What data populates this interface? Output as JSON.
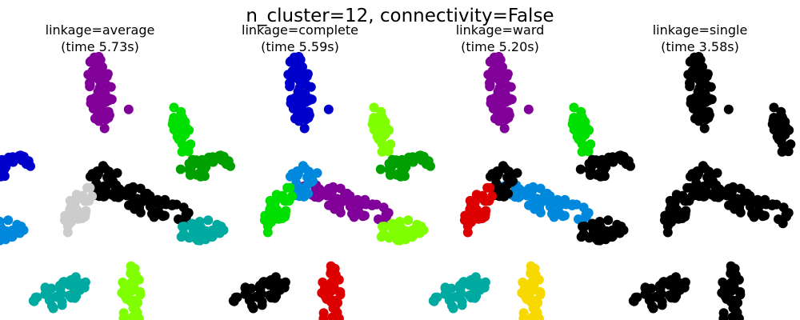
{
  "figure": {
    "suptitle": "n_cluster=12, connectivity=False"
  },
  "panels": [
    {
      "title": "linkage=average",
      "time_label": "(time 5.73s)"
    },
    {
      "title": "linkage=complete",
      "time_label": "(time 5.59s)"
    },
    {
      "title": "linkage=ward",
      "time_label": "(time 5.20s)"
    },
    {
      "title": "linkage=single",
      "time_label": "(time 3.58s)"
    }
  ],
  "chart_data": {
    "type": "scatter",
    "title": "n_cluster=12, connectivity=False",
    "subplots": 4,
    "axes_visible": false,
    "grid": false,
    "palette": {
      "purple": "#800099",
      "blue": "#0000cc",
      "green": "#00a000",
      "lime": "#00e000",
      "yellowgreen": "#80ff00",
      "teal": "#00aaa0",
      "skyblue": "#0088dd",
      "gray": "#cccccc",
      "black": "#000000",
      "red": "#dd0000",
      "orange": "#ff6600",
      "yellow": "#f7d900"
    },
    "shapes": {
      "top_arm": {
        "cx": 0.0,
        "cy": 1.05,
        "rx": 0.14,
        "ry": 0.42,
        "rot": 5,
        "n": 70
      },
      "right_up": {
        "cx": 0.9,
        "cy": 0.62,
        "rx": 0.1,
        "ry": 0.28,
        "rot": 12,
        "n": 35
      },
      "left_up": {
        "cx": -1.05,
        "cy": 0.22,
        "rx": 0.3,
        "ry": 0.12,
        "rot": 10,
        "n": 35
      },
      "left_mid": {
        "cx": -1.15,
        "cy": -0.5,
        "rx": 0.3,
        "ry": 0.12,
        "rot": 3,
        "n": 35
      },
      "down_left": {
        "cx": -0.45,
        "cy": -1.2,
        "rx": 0.32,
        "ry": 0.14,
        "rot": 25,
        "n": 40
      },
      "down_right": {
        "cx": 0.35,
        "cy": -1.25,
        "rx": 0.12,
        "ry": 0.36,
        "rot": 0,
        "n": 40
      },
      "right_arm": {
        "cx": 0.55,
        "cy": -0.2,
        "rx": 0.55,
        "ry": 0.13,
        "rot": -20,
        "n": 60
      },
      "center": {
        "cx": 0.05,
        "cy": 0.05,
        "rx": 0.18,
        "ry": 0.18,
        "rot": 0,
        "n": 25
      },
      "center_left": {
        "cx": -0.25,
        "cy": -0.25,
        "rx": 0.12,
        "ry": 0.3,
        "rot": -25,
        "n": 30
      },
      "outlier": {
        "cx": 0.32,
        "cy": 0.85,
        "rx": 0.0,
        "ry": 0.0,
        "rot": 0,
        "n": 1
      }
    },
    "panels": [
      {
        "linkage": "average",
        "time_s": 5.73,
        "cluster_colors": {
          "top_arm": "purple",
          "outlier": "purple",
          "right_up": "lime",
          "left_up": "blue",
          "left_mid": "skyblue",
          "down_left": "teal",
          "down_right": "yellowgreen",
          "right_arm": "black",
          "center": "black",
          "center_left": "gray"
        }
      },
      {
        "linkage": "complete",
        "time_s": 5.59,
        "cluster_colors": {
          "top_arm": "blue",
          "outlier": "blue",
          "right_up": "yellowgreen",
          "left_up": "green",
          "left_mid": "teal",
          "down_left": "black",
          "down_right": "red",
          "right_arm": "purple",
          "center": "skyblue",
          "center_left": "lime"
        }
      },
      {
        "linkage": "ward",
        "time_s": 5.2,
        "cluster_colors": {
          "top_arm": "purple",
          "outlier": "purple",
          "right_up": "lime",
          "left_up": "green",
          "left_mid": "yellowgreen",
          "down_left": "teal",
          "down_right": "yellow",
          "right_arm": "skyblue",
          "center": "black",
          "center_left": "red"
        }
      },
      {
        "linkage": "single",
        "time_s": 3.58,
        "cluster_colors": {
          "top_arm": "black",
          "outlier": "black",
          "right_up": "black",
          "left_up": "black",
          "left_mid": "black",
          "down_left": "black",
          "down_right": "black",
          "right_arm": "black",
          "center": "black",
          "center_left": "black"
        }
      }
    ]
  }
}
